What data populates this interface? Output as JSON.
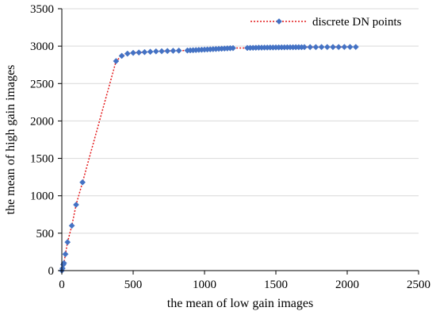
{
  "chart_data": {
    "type": "line",
    "xlabel": "the mean of low gain images",
    "ylabel": "the mean of high gain images",
    "xlim": [
      0,
      2500
    ],
    "ylim": [
      0,
      3500
    ],
    "xticks": [
      0,
      500,
      1000,
      1500,
      2000,
      2500
    ],
    "yticks": [
      0,
      500,
      1000,
      1500,
      2000,
      2500,
      3000,
      3500
    ],
    "grid": "horizontal",
    "legend_position": "top-right",
    "series": [
      {
        "name": "discrete DN points",
        "line_style": "dotted",
        "line_color": "#e41a1c",
        "marker": "diamond",
        "marker_color": "#4472c4",
        "x": [
          0,
          5,
          10,
          15,
          25,
          40,
          70,
          100,
          145,
          380,
          420,
          460,
          500,
          540,
          580,
          620,
          660,
          700,
          740,
          780,
          820,
          880,
          900,
          920,
          940,
          960,
          980,
          1000,
          1020,
          1040,
          1060,
          1080,
          1100,
          1120,
          1140,
          1160,
          1180,
          1200,
          1300,
          1320,
          1340,
          1360,
          1380,
          1400,
          1420,
          1440,
          1460,
          1480,
          1500,
          1520,
          1540,
          1560,
          1580,
          1600,
          1620,
          1640,
          1660,
          1680,
          1700,
          1740,
          1780,
          1820,
          1860,
          1900,
          1940,
          1980,
          2020,
          2060
        ],
        "y": [
          0,
          30,
          80,
          100,
          220,
          380,
          600,
          880,
          1180,
          2800,
          2870,
          2900,
          2910,
          2915,
          2920,
          2925,
          2930,
          2932,
          2935,
          2938,
          2940,
          2942,
          2944,
          2946,
          2948,
          2950,
          2952,
          2954,
          2956,
          2958,
          2960,
          2962,
          2964,
          2966,
          2968,
          2970,
          2972,
          2974,
          2976,
          2977,
          2978,
          2979,
          2980,
          2980,
          2981,
          2981,
          2982,
          2982,
          2983,
          2983,
          2984,
          2984,
          2985,
          2985,
          2985,
          2986,
          2986,
          2986,
          2987,
          2987,
          2987,
          2988,
          2988,
          2988,
          2988,
          2989,
          2989,
          2989
        ]
      }
    ]
  }
}
